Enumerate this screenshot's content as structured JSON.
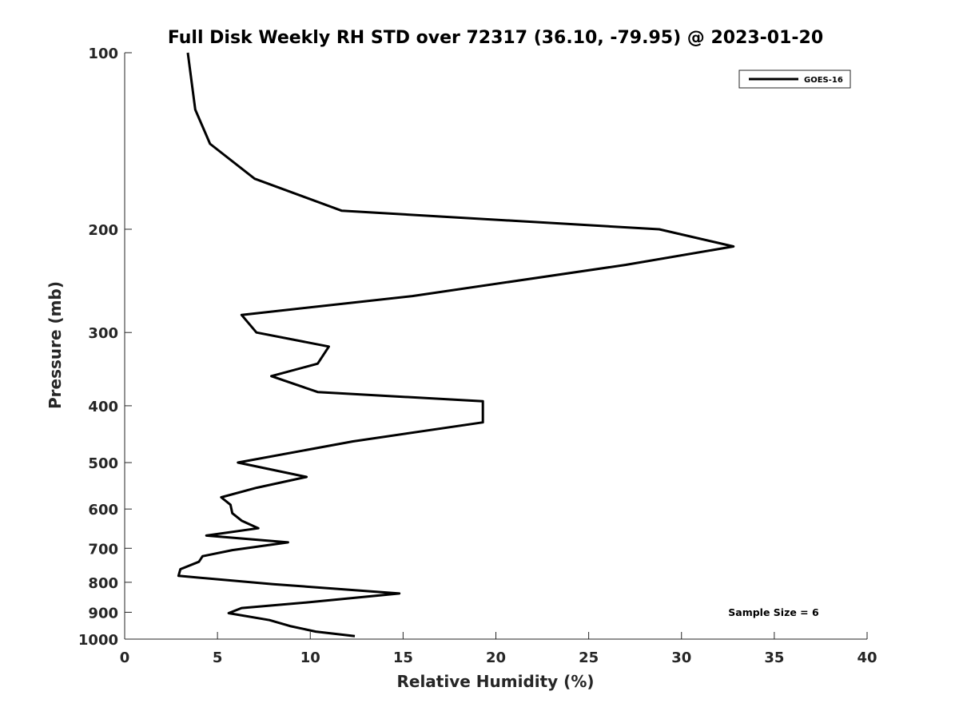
{
  "chart_data": {
    "type": "line",
    "title": "Full Disk Weekly RH STD over 72317 (36.10, -79.95) @ 2023-01-20",
    "xlabel": "Relative Humidity (%)",
    "ylabel": "Pressure (mb)",
    "xlim": [
      0,
      40
    ],
    "ylim": [
      1000,
      100
    ],
    "y_scale": "log",
    "y_reversed": true,
    "grid": false,
    "x_ticks": [
      0,
      5,
      10,
      15,
      20,
      25,
      30,
      35,
      40
    ],
    "x_tick_labels": [
      "0",
      "5",
      "10",
      "15",
      "20",
      "25",
      "30",
      "35",
      "40"
    ],
    "y_ticks": [
      100,
      200,
      300,
      400,
      500,
      600,
      700,
      800,
      900,
      1000
    ],
    "y_tick_labels": [
      "100",
      "200",
      "300",
      "400",
      "500",
      "600",
      "700",
      "800",
      "900",
      "1000"
    ],
    "legend": {
      "location": "top-right",
      "entries": [
        "GOES-16"
      ]
    },
    "annotation": "Sample Size = 6",
    "series": [
      {
        "name": "GOES-16",
        "color": "#000000",
        "points": [
          [
            3.4,
            100
          ],
          [
            3.8,
            125
          ],
          [
            4.6,
            143
          ],
          [
            7.0,
            164
          ],
          [
            11.7,
            186
          ],
          [
            28.8,
            200
          ],
          [
            32.8,
            214
          ],
          [
            27.0,
            230
          ],
          [
            15.5,
            260
          ],
          [
            6.3,
            280
          ],
          [
            7.1,
            300
          ],
          [
            11.0,
            317
          ],
          [
            10.4,
            339
          ],
          [
            7.9,
            356
          ],
          [
            10.4,
            379
          ],
          [
            19.3,
            393
          ],
          [
            19.3,
            427
          ],
          [
            12.3,
            460
          ],
          [
            6.1,
            500
          ],
          [
            9.8,
            529
          ],
          [
            7.1,
            552
          ],
          [
            5.2,
            573
          ],
          [
            5.7,
            590
          ],
          [
            5.8,
            610
          ],
          [
            6.3,
            628
          ],
          [
            7.2,
            647
          ],
          [
            4.4,
            666
          ],
          [
            8.8,
            684
          ],
          [
            5.8,
            705
          ],
          [
            4.2,
            722
          ],
          [
            4.0,
            738
          ],
          [
            3.0,
            760
          ],
          [
            2.9,
            780
          ],
          [
            8.0,
            806
          ],
          [
            14.8,
            836
          ],
          [
            9.8,
            866
          ],
          [
            6.3,
            885
          ],
          [
            5.6,
            903
          ],
          [
            7.8,
            928
          ],
          [
            8.9,
            950
          ],
          [
            10.3,
            971
          ],
          [
            12.4,
            988
          ]
        ]
      }
    ]
  }
}
